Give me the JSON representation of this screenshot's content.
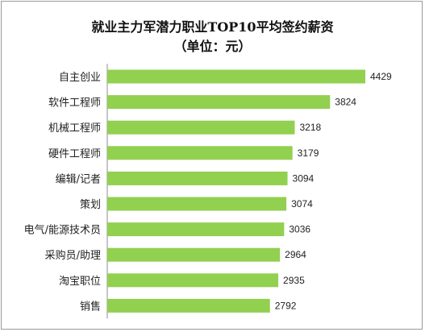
{
  "chart_data": {
    "type": "bar",
    "orientation": "horizontal",
    "title": "就业主力军潜力职业TOP10平均签约薪资",
    "subtitle": "（单位：元）",
    "categories": [
      "自主创业",
      "软件工程师",
      "机械工程师",
      "硬件工程师",
      "编辑/记者",
      "策划",
      "电气/能源技术员",
      "采购员/助理",
      "淘宝职位",
      "销售"
    ],
    "values": [
      4429,
      3824,
      3218,
      3179,
      3094,
      3074,
      3036,
      2964,
      2935,
      2792
    ],
    "data_labels": [
      "4429",
      "3824",
      "3218",
      "3179",
      "3094",
      "3074",
      "3036",
      "2964",
      "2935",
      "2792"
    ],
    "xlim": [
      0,
      4429
    ],
    "bar_color": "#92D050",
    "grid": false,
    "legend": "none"
  }
}
